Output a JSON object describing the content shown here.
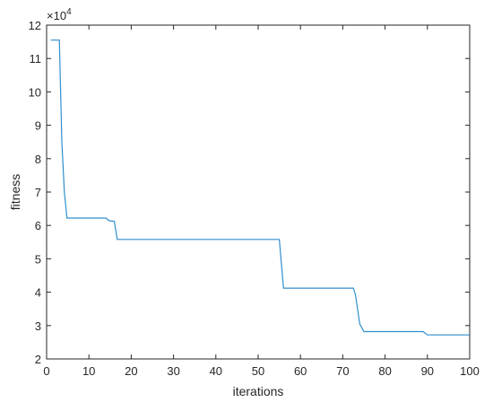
{
  "chart_data": {
    "type": "line",
    "xlabel": "iterations",
    "ylabel": "fitness",
    "exponent_label": "×10",
    "exponent_power": "4",
    "xlim": [
      0,
      100
    ],
    "ylim": [
      2,
      12
    ],
    "xticks": [
      0,
      10,
      20,
      30,
      40,
      50,
      60,
      70,
      80,
      90,
      100
    ],
    "yticks": [
      2,
      3,
      4,
      5,
      6,
      7,
      8,
      9,
      10,
      11,
      12
    ],
    "grid": false,
    "line_color": "#2e8fcc",
    "series": [
      {
        "x": [
          1,
          2,
          3,
          3.6,
          4.2,
          4.8,
          5,
          10,
          14,
          14.8,
          16,
          16.7,
          17,
          30,
          50,
          55,
          56,
          60,
          70,
          72.5,
          73,
          74,
          75,
          80,
          89,
          90,
          100
        ],
        "y": [
          11.55,
          11.55,
          11.55,
          8.5,
          7.0,
          6.22,
          6.22,
          6.22,
          6.22,
          6.14,
          6.12,
          5.58,
          5.58,
          5.58,
          5.58,
          5.58,
          4.12,
          4.12,
          4.12,
          4.12,
          3.92,
          3.05,
          2.82,
          2.82,
          2.82,
          2.72,
          2.72
        ]
      }
    ]
  }
}
